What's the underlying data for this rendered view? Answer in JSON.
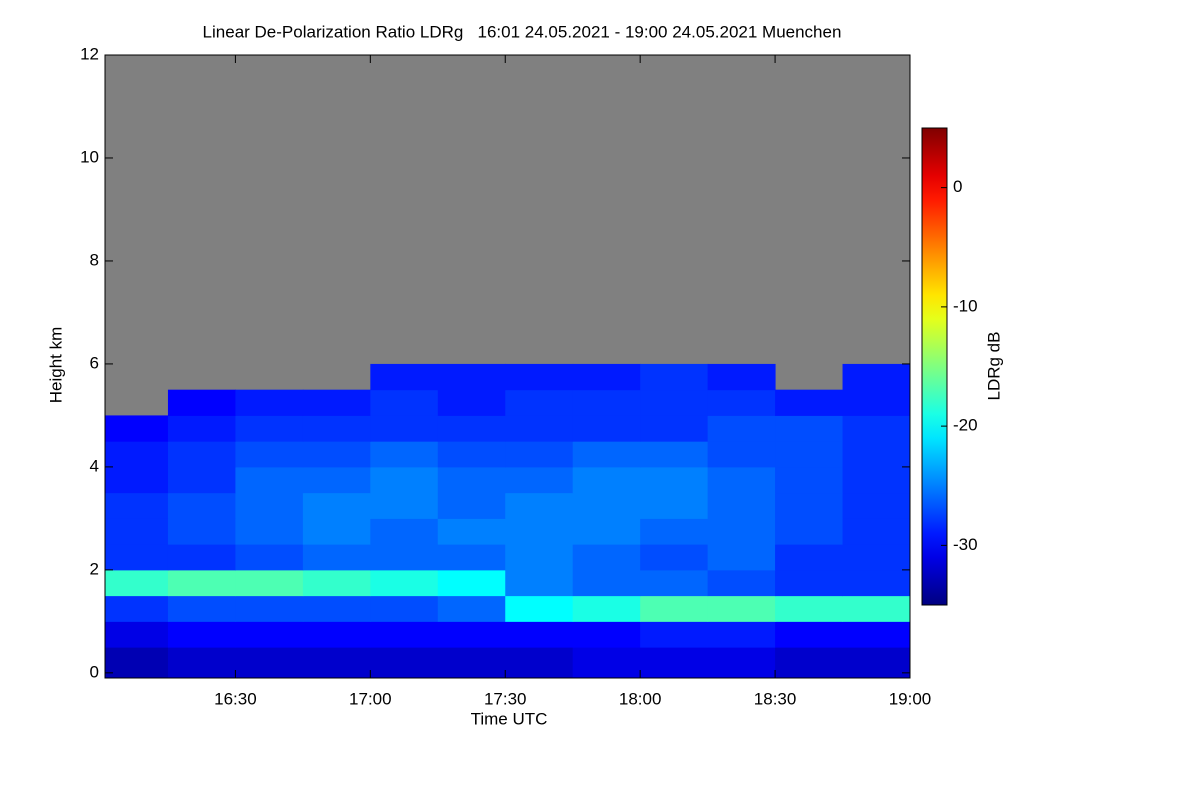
{
  "chart_data": {
    "type": "heatmap",
    "title": "Linear De-Polarization Ratio LDRg   16:01 24.05.2021 - 19:00 24.05.2021 Muenchen",
    "x_label": "Time UTC",
    "y_label": "Height km",
    "colorbar_label": "LDRg dB",
    "xlim": [
      16.0167,
      19.0
    ],
    "xticks": [
      {
        "value": 16.5,
        "label": "16:30"
      },
      {
        "value": 17.0,
        "label": "17:00"
      },
      {
        "value": 17.5,
        "label": "17:30"
      },
      {
        "value": 18.0,
        "label": "18:00"
      },
      {
        "value": 18.5,
        "label": "18:30"
      },
      {
        "value": 19.0,
        "label": "19:00"
      }
    ],
    "ylim": [
      -0.1,
      12
    ],
    "yticks": [
      0,
      2,
      4,
      6,
      8,
      10,
      12
    ],
    "zlim": [
      -35,
      5
    ],
    "zticks": [
      -30,
      -20,
      -10,
      0
    ],
    "colormap": "jet",
    "no_data_color": "#808080",
    "x_edges": [
      16.0167,
      16.25,
      16.5,
      16.75,
      17.0,
      17.25,
      17.5,
      17.75,
      18.0,
      18.25,
      18.5,
      18.75,
      19.0
    ],
    "y_edges": [
      0,
      0.5,
      1.0,
      1.5,
      2.0,
      2.5,
      3.0,
      3.5,
      4.0,
      4.5,
      5.0,
      5.5,
      6.0
    ],
    "z": [
      [
        -33,
        -32,
        -32,
        -32,
        -32,
        -32,
        -32,
        -31,
        -31,
        -31,
        -32,
        -32
      ],
      [
        -31,
        -30,
        -30,
        -30,
        -30,
        -30,
        -30,
        -30,
        -29,
        -29,
        -30,
        -30
      ],
      [
        -28,
        -27,
        -27,
        -27,
        -27,
        -26,
        -20,
        -19,
        -17,
        -17,
        -18,
        -18
      ],
      [
        -18,
        -17,
        -17,
        -18,
        -19,
        -20,
        -25,
        -26,
        -26,
        -27,
        -28,
        -28
      ],
      [
        -28,
        -28,
        -27,
        -26,
        -26,
        -26,
        -25,
        -26,
        -27,
        -26,
        -28,
        -28
      ],
      [
        -28,
        -27,
        -26,
        -25,
        -26,
        -25,
        -25,
        -25,
        -26,
        -26,
        -27,
        -28
      ],
      [
        -28,
        -27,
        -26,
        -25,
        -25,
        -26,
        -25,
        -25,
        -25,
        -26,
        -27,
        -28
      ],
      [
        -29,
        -28,
        -26,
        -26,
        -25,
        -26,
        -26,
        -25,
        -25,
        -26,
        -27,
        -28
      ],
      [
        -29,
        -28,
        -27,
        -27,
        -26,
        -27,
        -27,
        -26,
        -26,
        -27,
        -27,
        -28
      ],
      [
        -30,
        -29,
        -28,
        -28,
        -28,
        -28,
        -28,
        -28,
        -28,
        -27,
        -27,
        -28
      ],
      [
        null,
        -30,
        -29,
        -29,
        -28,
        -29,
        -28,
        -28,
        -28,
        -28,
        -29,
        -29
      ],
      [
        null,
        null,
        null,
        null,
        -29,
        -29,
        -29,
        -29,
        -28,
        -29,
        null,
        -29
      ]
    ]
  }
}
